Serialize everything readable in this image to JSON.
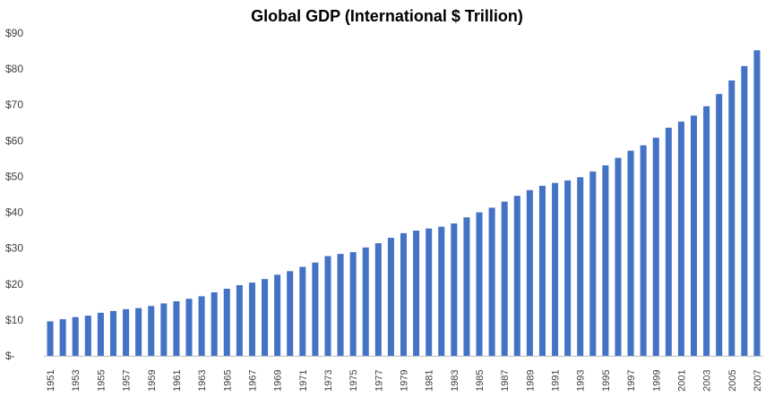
{
  "chart_data": {
    "type": "bar",
    "title": "Global GDP (International $ Trillion)",
    "xlabel": "",
    "ylabel": "",
    "ylim": [
      0,
      90
    ],
    "yticks": [
      "$-",
      "$10",
      "$20",
      "$30",
      "$40",
      "$50",
      "$60",
      "$70",
      "$80",
      "$90"
    ],
    "grid": false,
    "bar_color": "#4472C4",
    "categories": [
      "1951",
      "1952",
      "1953",
      "1954",
      "1955",
      "1956",
      "1957",
      "1958",
      "1959",
      "1960",
      "1961",
      "1962",
      "1963",
      "1964",
      "1965",
      "1966",
      "1967",
      "1968",
      "1969",
      "1970",
      "1971",
      "1972",
      "1973",
      "1974",
      "1975",
      "1976",
      "1977",
      "1978",
      "1979",
      "1980",
      "1981",
      "1982",
      "1983",
      "1984",
      "1985",
      "1986",
      "1987",
      "1988",
      "1989",
      "1990",
      "1991",
      "1992",
      "1993",
      "1994",
      "1995",
      "1996",
      "1997",
      "1998",
      "1999",
      "2000",
      "2001",
      "2002",
      "2003",
      "2004",
      "2005",
      "2006",
      "2007"
    ],
    "x_tick_labels": [
      "1951",
      "",
      "1953",
      "",
      "1955",
      "",
      "1957",
      "",
      "1959",
      "",
      "1961",
      "",
      "1963",
      "",
      "1965",
      "",
      "1967",
      "",
      "1969",
      "",
      "1971",
      "",
      "1973",
      "",
      "1975",
      "",
      "1977",
      "",
      "1979",
      "",
      "1981",
      "",
      "1983",
      "",
      "1985",
      "",
      "1987",
      "",
      "1989",
      "",
      "1991",
      "",
      "1993",
      "",
      "1995",
      "",
      "1997",
      "",
      "1999",
      "",
      "2001",
      "",
      "2003",
      "",
      "2005",
      "",
      "2007"
    ],
    "values": [
      9.6,
      10.2,
      10.8,
      11.2,
      12.0,
      12.5,
      13.0,
      13.3,
      13.9,
      14.6,
      15.2,
      15.9,
      16.6,
      17.7,
      18.7,
      19.7,
      20.4,
      21.4,
      22.6,
      23.6,
      24.8,
      26.0,
      27.8,
      28.4,
      28.9,
      30.2,
      31.4,
      32.9,
      34.2,
      34.9,
      35.5,
      36.0,
      36.9,
      38.6,
      40.0,
      41.3,
      43.0,
      44.6,
      46.2,
      47.4,
      48.2,
      48.9,
      49.8,
      51.4,
      53.1,
      55.2,
      57.2,
      58.7,
      60.8,
      63.6,
      65.3,
      67.0,
      69.6,
      73.0,
      76.8,
      80.8,
      85.2
    ]
  }
}
